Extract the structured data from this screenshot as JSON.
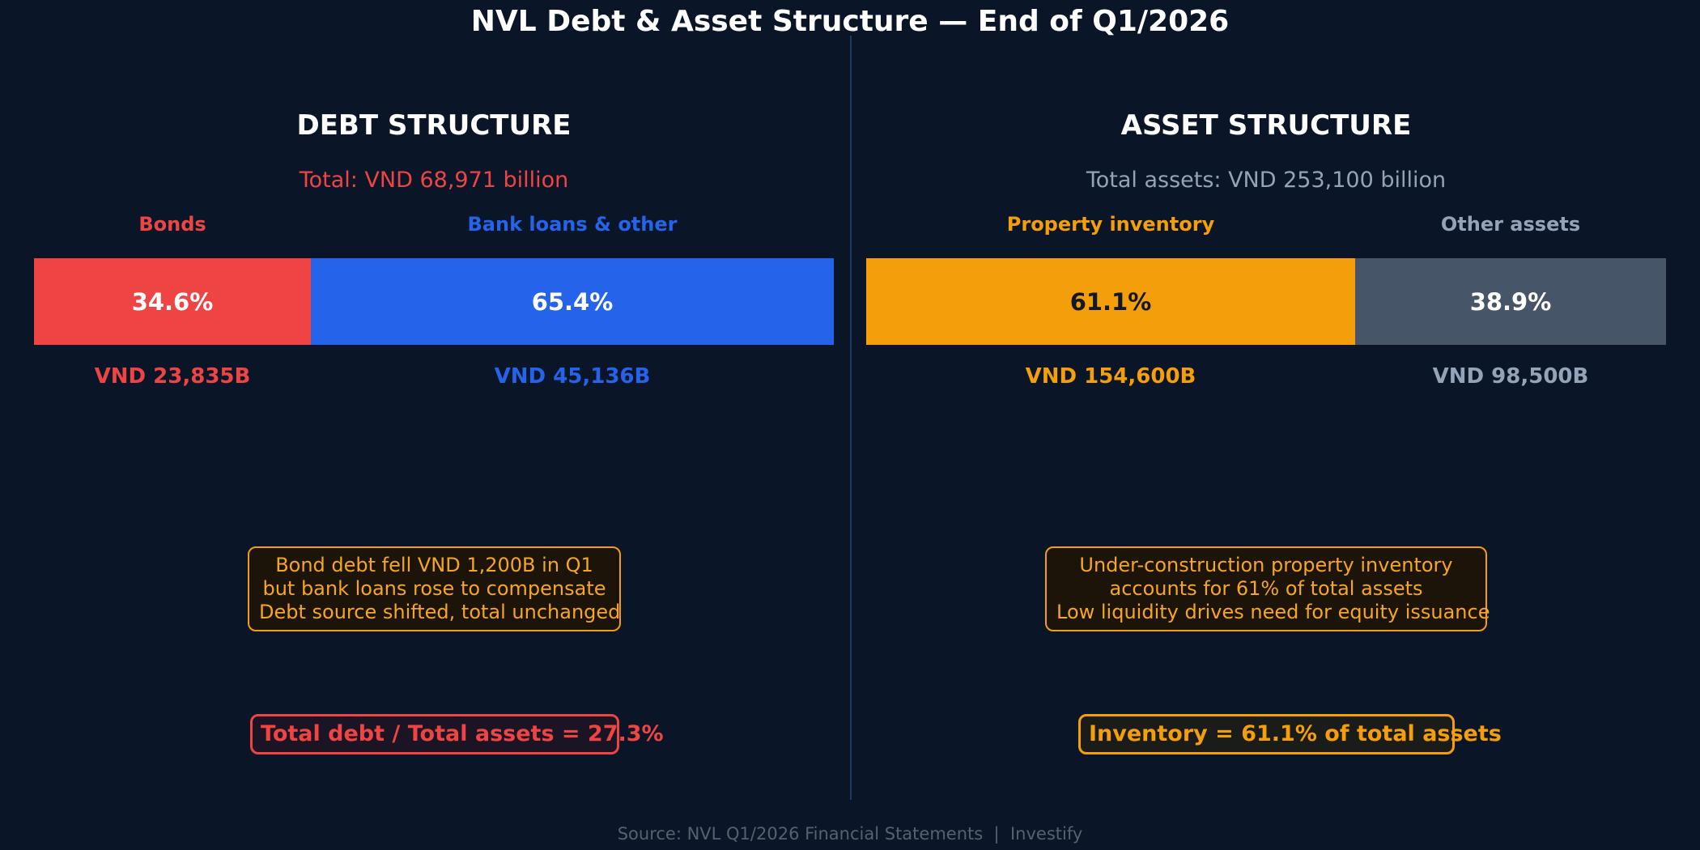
{
  "title": "NVL Debt & Asset Structure — End of Q1/2026",
  "colors": {
    "background": "#0a1628",
    "bonds": "#ef4444",
    "bank_loans": "#2563eb",
    "property_inventory": "#f59e0b",
    "other_assets": "#475569",
    "note_accent": "#f59e0b"
  },
  "chart_data": [
    {
      "type": "bar",
      "orientation": "horizontal-stacked-100",
      "title": "DEBT STRUCTURE",
      "subtitle": "Total: VND 68,971 billion",
      "series": [
        {
          "name": "Bonds",
          "percent": 34.6,
          "percent_label": "34.6%",
          "value_label": "VND 23,835B",
          "color": "#ef4444"
        },
        {
          "name": "Bank loans & other",
          "percent": 65.4,
          "percent_label": "65.4%",
          "value_label": "VND 45,136B",
          "color": "#2563eb"
        }
      ]
    },
    {
      "type": "bar",
      "orientation": "horizontal-stacked-100",
      "title": "ASSET STRUCTURE",
      "subtitle": "Total assets: VND 253,100 billion",
      "series": [
        {
          "name": "Property inventory",
          "percent": 61.1,
          "percent_label": "61.1%",
          "value_label": "VND 154,600B",
          "color": "#f59e0b"
        },
        {
          "name": "Other assets",
          "percent": 38.9,
          "percent_label": "38.9%",
          "value_label": "VND 98,500B",
          "color": "#475569"
        }
      ]
    }
  ],
  "debt_panel": {
    "note_lines": [
      "Bond debt fell VND 1,200B in Q1",
      "but bank loans rose to compensate",
      "Debt source shifted, total unchanged"
    ],
    "metric": "Total debt / Total assets = 27.3%"
  },
  "asset_panel": {
    "note_lines": [
      "Under-construction property inventory",
      "accounts for 61% of total assets",
      "Low liquidity drives need for equity issuance"
    ],
    "metric": "Inventory = 61.1% of total assets"
  },
  "footer": "Source: NVL Q1/2026 Financial Statements  |  Investify"
}
